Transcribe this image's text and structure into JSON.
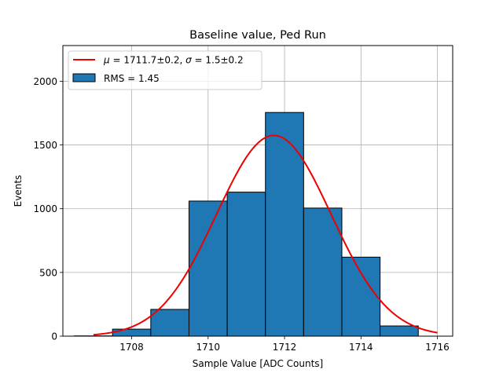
{
  "chart_data": {
    "type": "bar",
    "title": "Baseline value, Ped Run",
    "xlabel": "Sample Value [ADC Counts]",
    "ylabel": "Events",
    "xlim": [
      1706.2,
      1716.4
    ],
    "ylim": [
      0,
      2280
    ],
    "grid": true,
    "xticks": [
      1708,
      1710,
      1712,
      1714,
      1716
    ],
    "yticks": [
      0,
      500,
      1000,
      1500,
      2000
    ],
    "histogram": {
      "name": "RMS = 1.45",
      "color": "#1f77b4",
      "edge_color": "#000000",
      "bin_edges": [
        1706.5,
        1707.5,
        1708.5,
        1709.5,
        1710.5,
        1711.5,
        1712.5,
        1713.5,
        1714.5,
        1715.5
      ],
      "values": [
        2,
        55,
        210,
        1060,
        1130,
        1755,
        1005,
        620,
        80
      ]
    },
    "fit": {
      "name": "μ = 1711.7±0.2, σ = 1.5±0.2",
      "mu_text": "μ",
      "mu_value": "1711.7±0.2",
      "sigma_text": "σ",
      "sigma_value": "1.5±0.2",
      "color": "#ee0000",
      "amplitude": 1575,
      "mu": 1711.72,
      "sigma": 1.5,
      "x_range": [
        1707,
        1716
      ]
    },
    "legend": {
      "position": "top-left"
    }
  }
}
